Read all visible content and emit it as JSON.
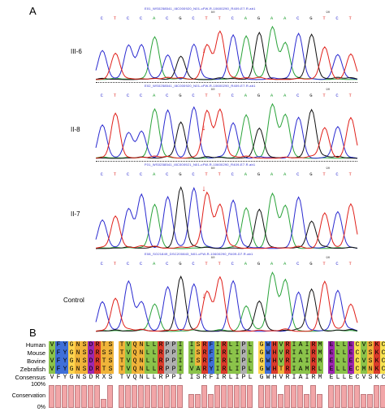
{
  "panel_a": {
    "letter": "A",
    "bases": [
      "C",
      "T",
      "C",
      "C",
      "A",
      "C",
      "G",
      "C",
      "T",
      "T",
      "C",
      "A",
      "G",
      "A",
      "A",
      "C",
      "G",
      "T",
      "C",
      "T"
    ],
    "base_colors": {
      "A": "#2aa33a",
      "C": "#2a2ad0",
      "G": "#111111",
      "T": "#e0201a"
    },
    "position_marks": [
      "80",
      "90"
    ],
    "tracks": [
      {
        "label": "III-6",
        "file": "E01_WS0258541_I8C000920_N01-cFW-R-10600290_R409-E7.R.ab1"
      },
      {
        "label": "II-8",
        "file": "E02_WS0258541_I8C000920_N01-cFW-R-10600290_R409-E7.R.ab1"
      },
      {
        "label": "II-7",
        "file": "F01_WS0258541_I8C000921_N01-cFW-R-10600290_R409-E7.R.ab1"
      },
      {
        "label": "Control",
        "file": "E08_SO21849_DSC200843_N01-cFW-R-10600290_R409-D7.R.ab1"
      }
    ]
  },
  "panel_b": {
    "letter": "B",
    "species": [
      "Human",
      "Mouse",
      "Bovine",
      "Zebrafish"
    ],
    "consensus_label": "Consensus",
    "conservation_label": "Conservation",
    "axis": {
      "top": "100%",
      "bottom": "0%"
    },
    "blocks": [
      {
        "sequences": [
          "VFYGNSDRTS",
          "VFYGNSDRSS",
          "VFYGNSDRTS",
          "VFYGNSDRTS"
        ],
        "consensus": "VFYGNSDRXS",
        "conservation": [
          1,
          1,
          1,
          1,
          1,
          1,
          1,
          1,
          0.4,
          1
        ]
      },
      {
        "sequences": [
          "TVQNLLRPPI",
          "TVQNLLRPPI",
          "TVQNLLRPPI",
          "TVQNLLRPPI"
        ],
        "consensus": "TVQNLLRPPI",
        "conservation": [
          1,
          1,
          1,
          1,
          1,
          1,
          1,
          1,
          1,
          1
        ]
      },
      {
        "sequences": [
          "ISRFIRLIPL",
          "ISRFIRLIPL",
          "ISRFIRLIPL",
          "VARYIRLIPL"
        ],
        "consensus": "ISRFIRLIPL",
        "conservation": [
          0.6,
          0.6,
          1,
          0.6,
          1,
          1,
          1,
          1,
          1,
          1
        ]
      },
      {
        "sequences": [
          "GWHVRIAIRM",
          "GWHVRIAIRM",
          "GWHVRIAIRM",
          "GWHTRIAMRL"
        ],
        "consensus": "GWHVRIAIRM",
        "conservation": [
          1,
          1,
          1,
          0.6,
          1,
          1,
          1,
          0.6,
          1,
          0.6
        ]
      },
      {
        "sequences": [
          "ELLECVSKCA",
          "ELLECVSKCA",
          "ELLECVSKCA",
          "ELLECMNKCT"
        ],
        "consensus": "ELLECVSKCX",
        "conservation": [
          1,
          1,
          1,
          1,
          1,
          0.6,
          0.6,
          1,
          1,
          0.4
        ]
      }
    ],
    "residue_colors": {
      "hydrophobic": "#8bc34a",
      "aromatic": "#3f6fd8",
      "polar": "#f0b43a",
      "positive": "#d93b2b",
      "negative": "#9c27b0",
      "glycine": "#ffd54f",
      "proline": "#b0b0b0",
      "cysteine": "#f5e050"
    }
  }
}
